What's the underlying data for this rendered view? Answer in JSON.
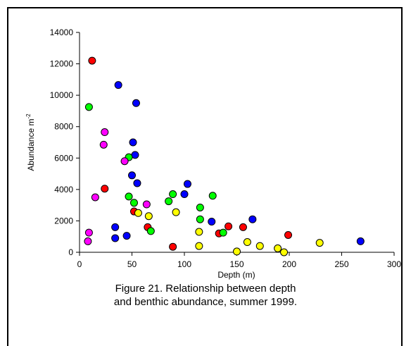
{
  "caption": {
    "line1": "Figure 21. Relationship between depth",
    "line2": "and benthic abundance, summer 1999."
  },
  "chart_data": {
    "type": "scatter",
    "xlabel": "Depth (m)",
    "ylabel": "Abundance m",
    "ylabel_superscript": "-2",
    "xlim": [
      0,
      300
    ],
    "ylim": [
      0,
      14000
    ],
    "x_ticks": [
      0,
      50,
      100,
      150,
      200,
      250,
      300
    ],
    "y_ticks": [
      0,
      2000,
      4000,
      6000,
      8000,
      10000,
      12000,
      14000
    ],
    "grid": false,
    "legend": "none",
    "series": [
      {
        "color": "#ff0000",
        "points": [
          [
            12,
            12200
          ],
          [
            24,
            4050
          ],
          [
            52,
            2600
          ],
          [
            65,
            1600
          ],
          [
            89,
            350
          ],
          [
            133,
            1200
          ],
          [
            142,
            1650
          ],
          [
            156,
            1600
          ],
          [
            199,
            1100
          ]
        ]
      },
      {
        "color": "#0000ff",
        "points": [
          [
            37,
            10650
          ],
          [
            54,
            9500
          ],
          [
            51,
            7000
          ],
          [
            53,
            6200
          ],
          [
            50,
            4900
          ],
          [
            55,
            4400
          ],
          [
            34,
            1600
          ],
          [
            34,
            900
          ],
          [
            45,
            1050
          ],
          [
            100,
            3700
          ],
          [
            103,
            4350
          ],
          [
            126,
            1950
          ],
          [
            165,
            2100
          ],
          [
            268,
            700
          ]
        ]
      },
      {
        "color": "#00ff00",
        "points": [
          [
            9,
            9250
          ],
          [
            47,
            6050
          ],
          [
            47,
            3550
          ],
          [
            52,
            3150
          ],
          [
            68,
            1350
          ],
          [
            85,
            3250
          ],
          [
            89,
            3700
          ],
          [
            115,
            2850
          ],
          [
            115,
            2100
          ],
          [
            127,
            3600
          ],
          [
            137,
            1250
          ]
        ]
      },
      {
        "color": "#ff00ff",
        "points": [
          [
            24,
            7650
          ],
          [
            23,
            6850
          ],
          [
            43,
            5800
          ],
          [
            15,
            3500
          ],
          [
            9,
            1250
          ],
          [
            8,
            700
          ],
          [
            64,
            3050
          ]
        ]
      },
      {
        "color": "#ffff00",
        "points": [
          [
            56,
            2500
          ],
          [
            66,
            2300
          ],
          [
            92,
            2550
          ],
          [
            114,
            1300
          ],
          [
            114,
            400
          ],
          [
            150,
            50
          ],
          [
            160,
            650
          ],
          [
            172,
            400
          ],
          [
            189,
            250
          ],
          [
            195,
            0
          ],
          [
            229,
            600
          ]
        ]
      }
    ]
  }
}
